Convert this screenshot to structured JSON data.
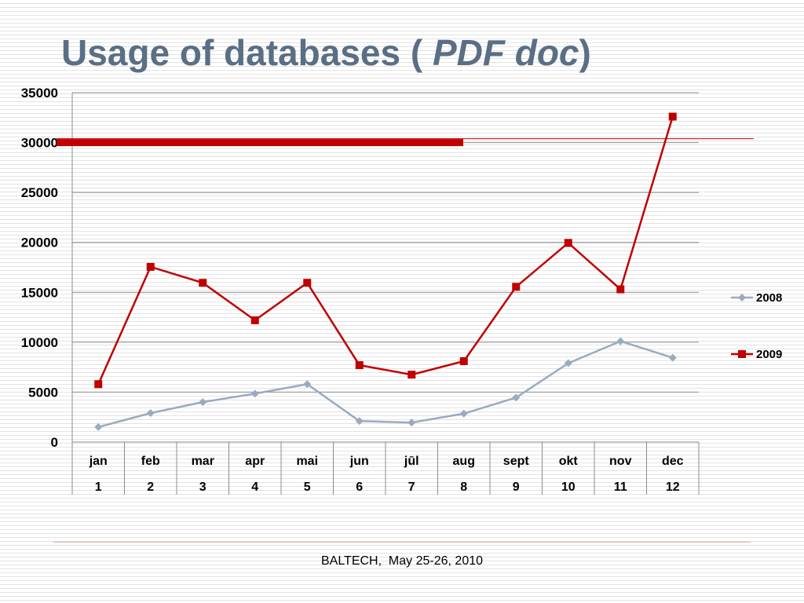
{
  "slide": {
    "title_main": "Usage of databases ( ",
    "title_italic": "PDF doc",
    "title_end": ")",
    "footer": "BALTECH,  May 25-26, 2010"
  },
  "colors": {
    "series_2008": "#9aabbf",
    "series_2009": "#c00000",
    "target_line": "#c00000",
    "title": "#5a6e84"
  },
  "chart_data": {
    "type": "line",
    "title": "",
    "xlabel": "",
    "ylabel": "",
    "ylim": [
      0,
      35000
    ],
    "y_ticks": [
      "0",
      "5000",
      "10000",
      "15000",
      "20000",
      "25000",
      "30000",
      "35000"
    ],
    "grid": true,
    "legend_position": "right",
    "categories": [
      "jan",
      "feb",
      "mar",
      "apr",
      "mai",
      "jun",
      "jūl",
      "aug",
      "sept",
      "okt",
      "nov",
      "dec"
    ],
    "categories_secondary": [
      "1",
      "2",
      "3",
      "4",
      "5",
      "6",
      "7",
      "8",
      "9",
      "10",
      "11",
      "12"
    ],
    "series": [
      {
        "name": "2008",
        "marker": "diamond",
        "color": "#9aabbf",
        "values": [
          1500,
          2900,
          4000,
          4850,
          5800,
          2100,
          1950,
          2850,
          4450,
          7900,
          10100,
          8450
        ]
      },
      {
        "name": "2009",
        "marker": "square",
        "color": "#c00000",
        "values": [
          5800,
          17550,
          15950,
          12200,
          15950,
          7700,
          6750,
          8100,
          15550,
          19950,
          15300,
          32600
        ]
      }
    ],
    "reference_line": {
      "value": 30000,
      "color": "#c00000"
    }
  }
}
